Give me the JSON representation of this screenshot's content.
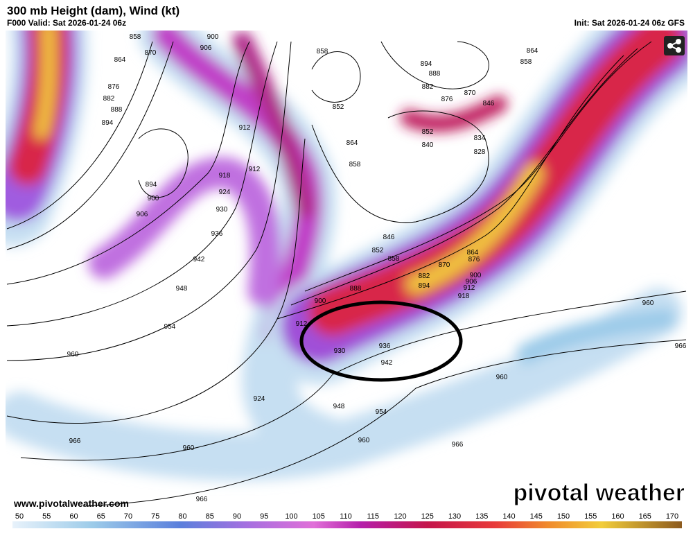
{
  "header": {
    "title": "300 mb Height (dam), Wind (kt)",
    "valid": "F000 Valid: Sat 2026-01-24 06z",
    "init": "Init: Sat 2026-01-24 06z GFS"
  },
  "footer": {
    "website": "www.pivotalweather.com",
    "brand": "pivotal weather"
  },
  "colorbar": {
    "labels": [
      "50",
      "55",
      "60",
      "65",
      "70",
      "75",
      "80",
      "85",
      "90",
      "95",
      "100",
      "105",
      "110",
      "115",
      "120",
      "125",
      "130",
      "135",
      "140",
      "145",
      "150",
      "155",
      "160",
      "165",
      "170"
    ]
  },
  "contour_labels": [
    "858",
    "870",
    "864",
    "876",
    "882",
    "888",
    "894",
    "900",
    "906",
    "912",
    "912",
    "918",
    "924",
    "930",
    "936",
    "942",
    "948",
    "954",
    "960",
    "966",
    "960",
    "966",
    "894",
    "900",
    "906",
    "858",
    "852",
    "864",
    "858",
    "846",
    "852",
    "858",
    "888",
    "900",
    "912",
    "930",
    "936",
    "942",
    "948",
    "954",
    "960",
    "966",
    "960",
    "960",
    "966",
    "864",
    "858",
    "894",
    "888",
    "882",
    "876",
    "870",
    "846",
    "852",
    "840",
    "834",
    "828",
    "864",
    "876",
    "870",
    "882",
    "894",
    "900",
    "906",
    "912",
    "918",
    "924"
  ]
}
